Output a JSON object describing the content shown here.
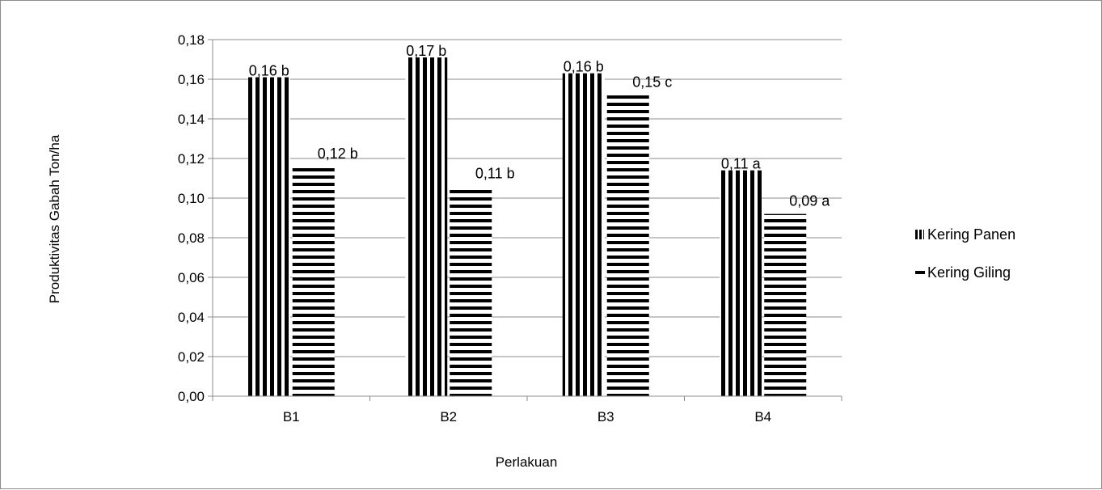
{
  "chart_data": {
    "type": "bar",
    "title": "",
    "xlabel": "Perlakuan",
    "ylabel": "Produktivitas Gabah Ton/ha",
    "categories": [
      "B1",
      "B2",
      "B3",
      "B4"
    ],
    "ylim": [
      0,
      0.18
    ],
    "yticks": [
      0.0,
      0.02,
      0.04,
      0.06,
      0.08,
      0.1,
      0.12,
      0.14,
      0.16,
      0.18
    ],
    "ytick_labels": [
      "0,00",
      "0,02",
      "0,04",
      "0,06",
      "0,08",
      "0,10",
      "0,12",
      "0,14",
      "0,16",
      "0,18"
    ],
    "grid": true,
    "legend_position": "right",
    "series": [
      {
        "name": "Kering Panen",
        "pattern": "vertical-stripes",
        "values": [
          0.161,
          0.171,
          0.163,
          0.114
        ],
        "labels": [
          "0,16 b",
          "0,17 b",
          "0,16 b",
          "0,11 a"
        ]
      },
      {
        "name": "Kering Giling",
        "pattern": "horizontal-stripes",
        "values": [
          0.116,
          0.106,
          0.152,
          0.092
        ],
        "labels": [
          "0,12 b",
          "0,11 b",
          "0,15 c",
          "0,09 a"
        ]
      }
    ],
    "colors": {
      "stripe": "#000000",
      "grid": "#8c8c8c",
      "axis": "#8c8c8c"
    }
  }
}
